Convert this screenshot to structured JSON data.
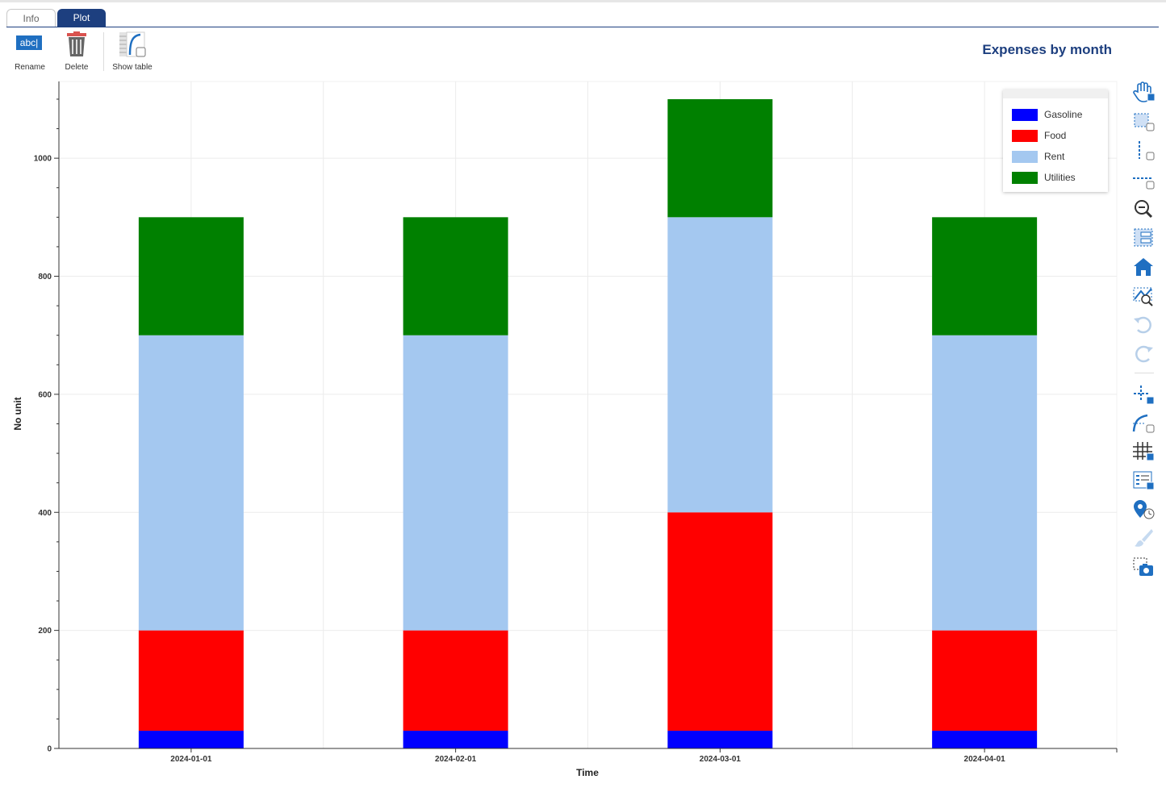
{
  "tabs": {
    "info": "Info",
    "plot": "Plot"
  },
  "toolbar": {
    "rename_icon_text": "abc|",
    "rename": "Rename",
    "delete": "Delete",
    "show_table": "Show table"
  },
  "plot_title": "Expenses by month",
  "colors": {
    "Gasoline": "#0000ff",
    "Food": "#ff0000",
    "Rent": "#a4c8f0",
    "Utilities": "#008000",
    "accent": "#1d3f7f",
    "tool_blue": "#1f6fc1"
  },
  "tools": [
    "pan-icon",
    "box-zoom-icon",
    "x-zoom-icon",
    "y-zoom-icon",
    "zoom-out-icon",
    "zoom-xy-icon",
    "home-icon",
    "zoom-fit-icon",
    "undo-icon",
    "redo-icon",
    "crosshair-icon",
    "curve-hover-icon",
    "grid-toggle-icon",
    "legend-toggle-icon",
    "marker-icon",
    "brush-icon",
    "screenshot-icon"
  ],
  "chart_data": {
    "type": "bar",
    "stacked": true,
    "categories": [
      "2024-01-01",
      "2024-02-01",
      "2024-03-01",
      "2024-04-01"
    ],
    "series": [
      {
        "name": "Gasoline",
        "values": [
          30,
          30,
          30,
          30
        ]
      },
      {
        "name": "Food",
        "values": [
          170,
          170,
          370,
          170
        ]
      },
      {
        "name": "Rent",
        "values": [
          500,
          500,
          500,
          500
        ]
      },
      {
        "name": "Utilities",
        "values": [
          200,
          200,
          200,
          200
        ]
      }
    ],
    "title": "Expenses by month",
    "xlabel": "Time",
    "ylabel": "No unit",
    "ylim": [
      0,
      1130
    ],
    "yticks": [
      0,
      200,
      400,
      600,
      800,
      1000
    ],
    "grid": true,
    "legend": "top-right"
  }
}
